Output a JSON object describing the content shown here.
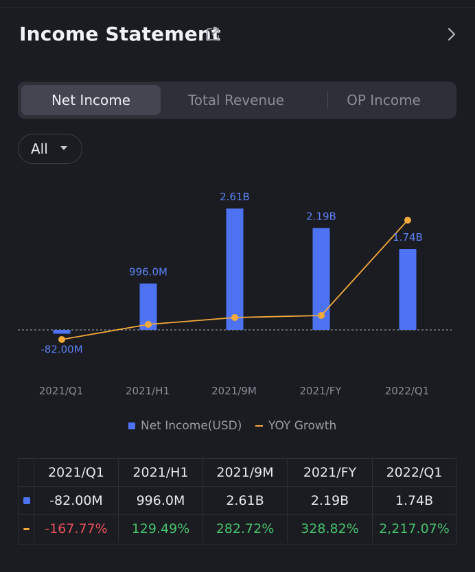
{
  "header": {
    "title": "Income Statement",
    "icons": {
      "external": "external-link-icon",
      "chevron": "chevron-right-icon"
    }
  },
  "tabs": [
    {
      "label": "Net Income",
      "active": true
    },
    {
      "label": "Total Revenue",
      "active": false
    },
    {
      "label": "OP Income",
      "active": false
    }
  ],
  "filter": {
    "label": "All",
    "icon": "caret-down-icon"
  },
  "colors": {
    "bar": "#4e73f2",
    "bar_label": "#5b82f5",
    "line": "#f4a93a",
    "negative": "#e8505b",
    "positive": "#45c06b"
  },
  "chart_data": {
    "type": "bar",
    "categories": [
      "2021/Q1",
      "2021/H1",
      "2021/9M",
      "2021/FY",
      "2022/Q1"
    ],
    "series": [
      {
        "name": "Net Income(USD)",
        "type": "bar",
        "values": [
          -82000000,
          996000000,
          2610000000,
          2190000000,
          1740000000
        ],
        "labels": [
          "-82.00M",
          "996.0M",
          "2.61B",
          "2.19B",
          "1.74B"
        ]
      },
      {
        "name": "YOY Growth",
        "type": "line",
        "values": [
          -167.77,
          129.49,
          282.72,
          328.82,
          2217.07
        ]
      }
    ],
    "baseline": 0,
    "grid": false,
    "legend_position": "bottom-center"
  },
  "legend": {
    "net_income": "Net Income(USD)",
    "yoy": "YOY Growth"
  },
  "table": {
    "headers": [
      "2021/Q1",
      "2021/H1",
      "2021/9M",
      "2021/FY",
      "2022/Q1"
    ],
    "net_income": [
      "-82.00M",
      "996.0M",
      "2.61B",
      "2.19B",
      "1.74B"
    ],
    "yoy": [
      "-167.77%",
      "129.49%",
      "282.72%",
      "328.82%",
      "2,217.07%"
    ]
  }
}
